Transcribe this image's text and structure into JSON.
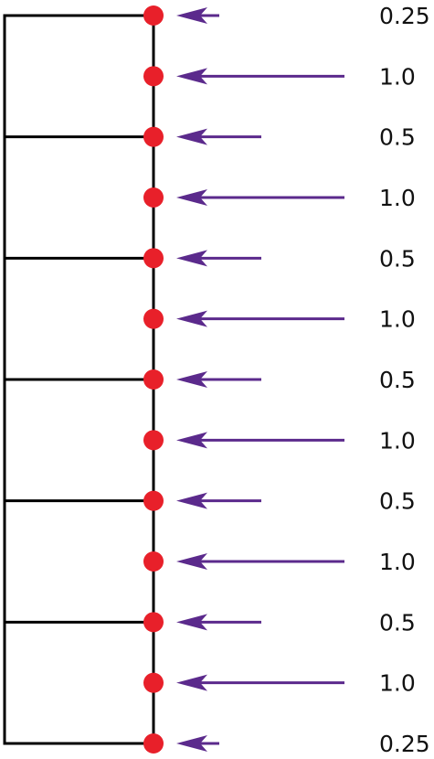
{
  "colors": {
    "frame": "#000000",
    "node": "#e8202a",
    "arrow": "#5b2a8c",
    "label": "#111111"
  },
  "icons": {
    "node": "red-dot",
    "arrow": "left-arrow"
  },
  "nodes": [
    {
      "weight": "0.25",
      "arrow_length": "short",
      "frame_connector": true
    },
    {
      "weight": "1.0",
      "arrow_length": "long",
      "frame_connector": false
    },
    {
      "weight": "0.5",
      "arrow_length": "medium",
      "frame_connector": true
    },
    {
      "weight": "1.0",
      "arrow_length": "long",
      "frame_connector": false
    },
    {
      "weight": "0.5",
      "arrow_length": "medium",
      "frame_connector": true
    },
    {
      "weight": "1.0",
      "arrow_length": "long",
      "frame_connector": false
    },
    {
      "weight": "0.5",
      "arrow_length": "medium",
      "frame_connector": true
    },
    {
      "weight": "1.0",
      "arrow_length": "long",
      "frame_connector": false
    },
    {
      "weight": "0.5",
      "arrow_length": "medium",
      "frame_connector": true
    },
    {
      "weight": "1.0",
      "arrow_length": "long",
      "frame_connector": false
    },
    {
      "weight": "0.5",
      "arrow_length": "medium",
      "frame_connector": true
    },
    {
      "weight": "1.0",
      "arrow_length": "long",
      "frame_connector": false
    },
    {
      "weight": "0.25",
      "arrow_length": "short",
      "frame_connector": true
    }
  ]
}
